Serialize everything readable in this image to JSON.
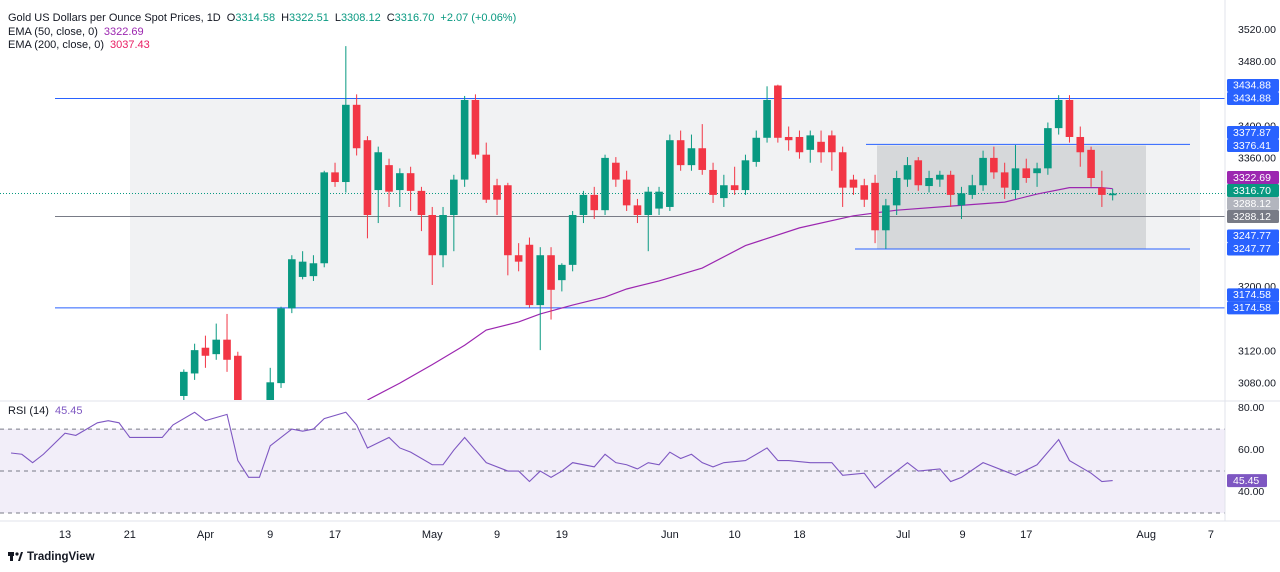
{
  "header": {
    "title": "Gold US Dollars per Ounce Spot Prices, 1D",
    "ohlc": [
      {
        "key": "O",
        "value": "3314.58"
      },
      {
        "key": "H",
        "value": "3322.51"
      },
      {
        "key": "L",
        "value": "3308.12"
      },
      {
        "key": "C",
        "value": "3316.70"
      }
    ],
    "change": "+2.07 (+0.06%)"
  },
  "chart_data": [
    {
      "type": "candlestick",
      "up_color": "#089981",
      "down_color": "#f23645",
      "grid": false,
      "xlim": [
        -6.02,
        107.4
      ],
      "ylim": [
        3060,
        3557.3
      ],
      "xticks": [
        {
          "value": 0,
          "label": "13"
        },
        {
          "value": 6,
          "label": "21"
        },
        {
          "value": 13,
          "label": "Apr"
        },
        {
          "value": 19,
          "label": "9"
        },
        {
          "value": 25,
          "label": "17"
        },
        {
          "value": 34,
          "label": "May"
        },
        {
          "value": 40,
          "label": "9"
        },
        {
          "value": 46,
          "label": "19"
        },
        {
          "value": 56,
          "label": "Jun"
        },
        {
          "value": 62,
          "label": "10"
        },
        {
          "value": 68,
          "label": "18"
        },
        {
          "value": 77.6,
          "label": "Jul"
        },
        {
          "value": 83.1,
          "label": "9"
        },
        {
          "value": 89,
          "label": "17"
        },
        {
          "value": 100.1,
          "label": "Aug"
        },
        {
          "value": 106.1,
          "label": "7"
        }
      ],
      "yticks": [
        {
          "value": 3520,
          "label": "3520.00"
        },
        {
          "value": 3480,
          "label": "3480.00"
        },
        {
          "value": 3400,
          "label": "3400.00"
        },
        {
          "value": 3360,
          "label": "3360.00"
        },
        {
          "value": 3200,
          "label": "3200.00"
        },
        {
          "value": 3120,
          "label": "3120.00"
        },
        {
          "value": 3080,
          "label": "3080.00"
        }
      ],
      "x": [
        11,
        12,
        13,
        14,
        15,
        16,
        17,
        18,
        19,
        20,
        21,
        22,
        23,
        24,
        25,
        26,
        27,
        28,
        29,
        30,
        31,
        32,
        33,
        34,
        35,
        36,
        37,
        38,
        39,
        40,
        41,
        42,
        43,
        44,
        45,
        46,
        47,
        48,
        49,
        50,
        51,
        52,
        53,
        54,
        55,
        56,
        57,
        58,
        59,
        60,
        61,
        62,
        63,
        64,
        65,
        66,
        67,
        68,
        69,
        70,
        71,
        72,
        73,
        74,
        75,
        76,
        77,
        78,
        79,
        80,
        81,
        82,
        83,
        84,
        85,
        86,
        87,
        88,
        89,
        90,
        91,
        92,
        93,
        94,
        95,
        96,
        97
      ],
      "open": [
        3065,
        3093,
        3125,
        3117,
        3135,
        3115,
        3040,
        2980,
        3005,
        3081,
        3174,
        3213,
        3214,
        3230,
        3343,
        3331,
        3427,
        3383,
        3321,
        3352,
        3321,
        3342,
        3320,
        3290,
        3240,
        3290,
        3334,
        3433,
        3365,
        3327,
        3327,
        3240,
        3253,
        3178,
        3240,
        3209,
        3228,
        3290,
        3315,
        3296,
        3355,
        3334,
        3302,
        3290,
        3298,
        3300,
        3383,
        3352,
        3373,
        3346,
        3311,
        3327,
        3321,
        3356,
        3386,
        3451,
        3387,
        3387,
        3371,
        3381,
        3389,
        3368,
        3334,
        3327,
        3330,
        3271,
        3302,
        3334,
        3358,
        3326,
        3334,
        3340,
        3302,
        3315,
        3327,
        3361,
        3343,
        3321,
        3348,
        3342,
        3348,
        3398,
        3433,
        3387,
        3371,
        3324,
        3314.58
      ],
      "high": [
        3098,
        3130,
        3140,
        3155,
        3167,
        3120,
        3055,
        3020,
        3100,
        3176,
        3240,
        3245,
        3240,
        3345,
        3355,
        3500,
        3440,
        3388,
        3375,
        3360,
        3348,
        3350,
        3325,
        3300,
        3300,
        3340,
        3438,
        3440,
        3380,
        3335,
        3330,
        3255,
        3262,
        3250,
        3250,
        3230,
        3295,
        3320,
        3325,
        3365,
        3362,
        3345,
        3310,
        3325,
        3325,
        3390,
        3395,
        3390,
        3403,
        3355,
        3340,
        3350,
        3365,
        3395,
        3450,
        3452,
        3400,
        3395,
        3395,
        3395,
        3395,
        3375,
        3340,
        3335,
        3340,
        3310,
        3345,
        3362,
        3362,
        3345,
        3345,
        3345,
        3325,
        3340,
        3370,
        3375,
        3355,
        3377,
        3360,
        3355,
        3405,
        3439,
        3439,
        3400,
        3375,
        3345,
        3322.51
      ],
      "low": [
        3055,
        3085,
        3100,
        3110,
        3095,
        3015,
        2955,
        2970,
        2990,
        3075,
        3168,
        3210,
        3208,
        3225,
        3325,
        3318,
        3364,
        3261,
        3280,
        3300,
        3300,
        3295,
        3270,
        3203,
        3225,
        3245,
        3325,
        3360,
        3305,
        3290,
        3215,
        3220,
        3175,
        3122,
        3160,
        3195,
        3220,
        3280,
        3285,
        3290,
        3325,
        3295,
        3280,
        3245,
        3290,
        3295,
        3345,
        3345,
        3340,
        3305,
        3300,
        3315,
        3315,
        3350,
        3380,
        3380,
        3370,
        3360,
        3355,
        3355,
        3345,
        3300,
        3315,
        3300,
        3255,
        3248,
        3290,
        3325,
        3320,
        3318,
        3325,
        3300,
        3285,
        3310,
        3320,
        3335,
        3310,
        3310,
        3330,
        3325,
        3340,
        3390,
        3380,
        3350,
        3325,
        3300,
        3308.12
      ],
      "close": [
        3095,
        3122,
        3115,
        3135,
        3110,
        3040,
        2980,
        3000,
        3082,
        3174,
        3235,
        3232,
        3230,
        3343,
        3331,
        3427,
        3373,
        3290,
        3368,
        3319,
        3342,
        3320,
        3290,
        3240,
        3290,
        3334,
        3433,
        3365,
        3309,
        3309,
        3240,
        3232,
        3178,
        3240,
        3197,
        3228,
        3290,
        3315,
        3296,
        3361,
        3334,
        3302,
        3290,
        3319,
        3319,
        3383,
        3352,
        3373,
        3346,
        3315,
        3327,
        3321,
        3358,
        3386,
        3433,
        3386,
        3383,
        3368,
        3389,
        3368,
        3368,
        3324,
        3324,
        3309,
        3271,
        3302,
        3336,
        3352,
        3327,
        3336,
        3340,
        3315,
        3317,
        3327,
        3361,
        3343,
        3324,
        3348,
        3336,
        3348,
        3398,
        3433,
        3387,
        3368,
        3336,
        3315,
        3316.7
      ],
      "ema": {
        "name": "EMA (50, close, 0)",
        "last": "3322.69",
        "color": "#9c27b0",
        "x": [
          28,
          31,
          34,
          37,
          39,
          42,
          44,
          47,
          50,
          52,
          55,
          59,
          63,
          68,
          73,
          77,
          82,
          87,
          90,
          93,
          96,
          97
        ],
        "values": [
          3060,
          3081,
          3104,
          3128,
          3147,
          3157,
          3167,
          3178,
          3188,
          3198,
          3208,
          3224,
          3252,
          3274,
          3289,
          3296,
          3301,
          3306,
          3316,
          3324,
          3324,
          3322.69
        ]
      },
      "ema200": {
        "name": "EMA (200, close, 0)",
        "last": "3037.43",
        "color": "#e91e63"
      },
      "price_tags": [
        {
          "value": 3434.88,
          "color": "#2962ff"
        },
        {
          "value": 3434.88,
          "color": "#2962ff"
        },
        {
          "value": 3377.87,
          "color": "#2962ff"
        },
        {
          "value": 3376.41,
          "color": "#2962ff"
        },
        {
          "value": 3322.69,
          "color": "#9c27b0"
        },
        {
          "value": 3316.7,
          "label": "3316.70",
          "color": "#089981"
        },
        {
          "value": 3288.12,
          "color": "#b2b5be"
        },
        {
          "value": 3288.12,
          "color": "#787b86"
        },
        {
          "value": 3247.77,
          "color": "#2962ff"
        },
        {
          "value": 3247.77,
          "color": "#2962ff"
        },
        {
          "value": 3174.58,
          "color": "#2962ff"
        },
        {
          "value": 3174.58,
          "color": "#2962ff"
        }
      ]
    },
    {
      "type": "line",
      "name": "RSI (14)",
      "last": 45.45,
      "color": "#7e57c2",
      "xlim": [
        -6.02,
        107.4
      ],
      "ylim": [
        26.2,
        82.9
      ],
      "yticks": [
        {
          "value": 80,
          "label": "80.00"
        },
        {
          "value": 60,
          "label": "60.00"
        },
        {
          "value": 40,
          "label": "40.00"
        }
      ],
      "band": [
        70,
        30
      ],
      "midline": 50,
      "x": [
        -5,
        -4,
        -3,
        -2,
        0,
        1,
        3,
        4,
        5,
        6,
        8,
        9,
        10,
        12,
        13,
        15,
        16,
        17,
        18,
        19,
        21,
        22,
        23,
        24,
        26,
        27,
        28,
        30,
        31,
        32,
        34,
        35,
        36,
        37,
        38,
        39,
        41,
        42,
        43,
        44,
        45,
        46,
        47,
        49,
        50,
        51,
        52,
        53,
        54,
        55,
        56,
        57,
        58,
        59,
        60,
        61,
        63,
        65,
        66,
        67,
        69,
        71,
        72,
        74,
        75,
        77,
        78,
        79,
        81,
        82,
        83,
        85,
        87,
        88,
        90,
        92,
        93,
        95,
        96,
        97
      ],
      "values": [
        58.6,
        58,
        54,
        58,
        68,
        67,
        73,
        74,
        73,
        66,
        66,
        66,
        72,
        78,
        74,
        77,
        55,
        47,
        47,
        62,
        70,
        69,
        70,
        75,
        78,
        72,
        61,
        66,
        61,
        59,
        53,
        53,
        60,
        66,
        60,
        54,
        50,
        50,
        45,
        50,
        47,
        50,
        54,
        52,
        58,
        54,
        53,
        51,
        54,
        53,
        59,
        56,
        58,
        54,
        52,
        54,
        55,
        61,
        55,
        55,
        54,
        54,
        48,
        49,
        42,
        50,
        54,
        50,
        51,
        45,
        47,
        54,
        50,
        48,
        53,
        65,
        55,
        49,
        45,
        45.45
      ]
    }
  ],
  "footer": {
    "brand": "TradingView"
  }
}
